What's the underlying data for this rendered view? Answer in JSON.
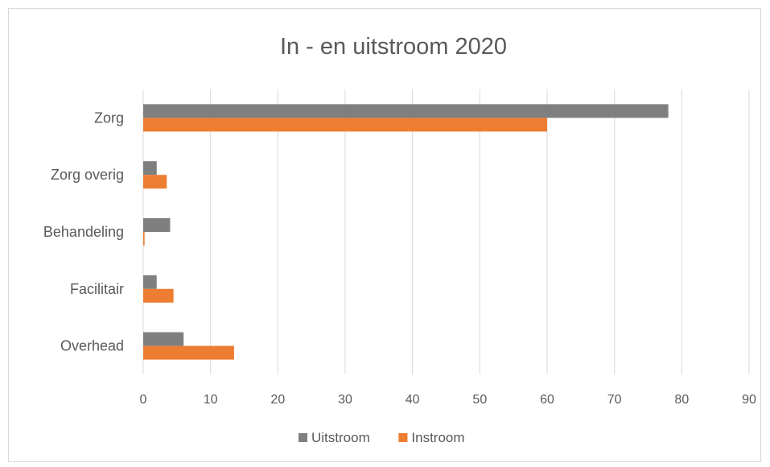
{
  "chart_data": {
    "type": "bar",
    "orientation": "horizontal",
    "title": "In - en uitstroom 2020",
    "categories": [
      "Zorg",
      "Zorg overig",
      "Behandeling",
      "Facilitair",
      "Overhead"
    ],
    "series": [
      {
        "name": "Uitstroom",
        "color": "#7f7f7f",
        "values": [
          78,
          2,
          4,
          2,
          6
        ]
      },
      {
        "name": "Instroom",
        "color": "#ed7d31",
        "values": [
          60,
          3.5,
          0.2,
          4.5,
          13.5
        ]
      }
    ],
    "xlim": [
      0,
      90
    ],
    "xticks": [
      "0",
      "10",
      "20",
      "30",
      "40",
      "50",
      "60",
      "70",
      "80",
      "90"
    ],
    "grid": true,
    "legend_position": "bottom"
  }
}
